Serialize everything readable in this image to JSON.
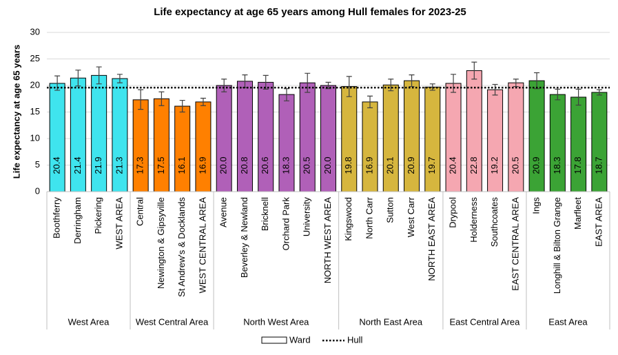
{
  "chart_data": {
    "type": "grouped_bar",
    "title": "Life expectancy at age 65 years among Hull females for 2023-25",
    "y_label": "Life expectancy at age 65 years",
    "ylim": [
      0,
      30
    ],
    "yticks": [
      0,
      5,
      10,
      15,
      20,
      25,
      30
    ],
    "grid": true,
    "legend_box_label": "Ward",
    "reference": {
      "name": "Hull",
      "value": 19.6
    },
    "groups": [
      {
        "name": "West Area",
        "color": "#3fe4ee",
        "categories": [
          "Boothferry",
          "Derringham",
          "Pickering",
          "WEST AREA"
        ],
        "values": [
          20.4,
          21.4,
          21.9,
          21.3
        ],
        "value_labels": [
          "20.4",
          "21.4",
          "21.9",
          "21.3"
        ],
        "ci_lower": [
          19.1,
          19.9,
          20.3,
          20.5
        ],
        "ci_upper": [
          21.8,
          22.9,
          23.5,
          22.1
        ]
      },
      {
        "name": "West Central Area",
        "color": "#ff8000",
        "categories": [
          "Central",
          "Newington & Gipsyville",
          "St Andrew's & Docklands",
          "WEST CENTRAL AREA"
        ],
        "values": [
          17.3,
          17.5,
          16.1,
          16.9
        ],
        "value_labels": [
          "17.3",
          "17.5",
          "16.1",
          "16.9"
        ],
        "ci_lower": [
          15.5,
          16.2,
          15.0,
          16.2
        ],
        "ci_upper": [
          19.2,
          18.8,
          17.2,
          17.6
        ]
      },
      {
        "name": "North West Area",
        "color": "#b060b8",
        "categories": [
          "Avenue",
          "Beverley & Newland",
          "Bricknell",
          "Orchard Park",
          "University",
          "NORTH WEST AREA"
        ],
        "values": [
          20.0,
          20.8,
          20.6,
          18.3,
          20.5,
          20.0
        ],
        "value_labels": [
          "20.0",
          "20.8",
          "20.6",
          "18.3",
          "20.5",
          "20.0"
        ],
        "ci_lower": [
          18.8,
          19.6,
          19.3,
          17.1,
          18.7,
          19.4
        ],
        "ci_upper": [
          21.2,
          22.0,
          21.9,
          19.4,
          22.3,
          20.6
        ]
      },
      {
        "name": "North East Area",
        "color": "#d6b63e",
        "categories": [
          "Kingswood",
          "North Carr",
          "Sutton",
          "West Carr",
          "NORTH EAST AREA"
        ],
        "values": [
          19.8,
          16.9,
          20.1,
          20.9,
          19.7
        ],
        "value_labels": [
          "19.8",
          "16.9",
          "20.1",
          "20.9",
          "19.7"
        ],
        "ci_lower": [
          17.9,
          15.8,
          19.0,
          19.8,
          19.1
        ],
        "ci_upper": [
          21.7,
          18.0,
          21.2,
          22.0,
          20.3
        ]
      },
      {
        "name": "East Central Area",
        "color": "#f5a7b1",
        "categories": [
          "Drypool",
          "Holderness",
          "Southcoates",
          "EAST CENTRAL AREA"
        ],
        "values": [
          20.4,
          22.8,
          19.2,
          20.5
        ],
        "value_labels": [
          "20.4",
          "22.8",
          "19.2",
          "20.5"
        ],
        "ci_lower": [
          18.7,
          21.2,
          18.2,
          19.8
        ],
        "ci_upper": [
          22.1,
          24.4,
          20.2,
          21.2
        ]
      },
      {
        "name": "East Area",
        "color": "#3ba335",
        "categories": [
          "Ings",
          "Longhill & Bilton Grange",
          "Marfleet",
          "EAST AREA"
        ],
        "values": [
          20.9,
          18.3,
          17.8,
          18.7
        ],
        "value_labels": [
          "20.9",
          "18.3",
          "17.8",
          "18.7"
        ],
        "ci_lower": [
          19.4,
          17.3,
          16.3,
          18.2
        ],
        "ci_upper": [
          22.4,
          19.3,
          19.3,
          19.2
        ]
      }
    ]
  }
}
